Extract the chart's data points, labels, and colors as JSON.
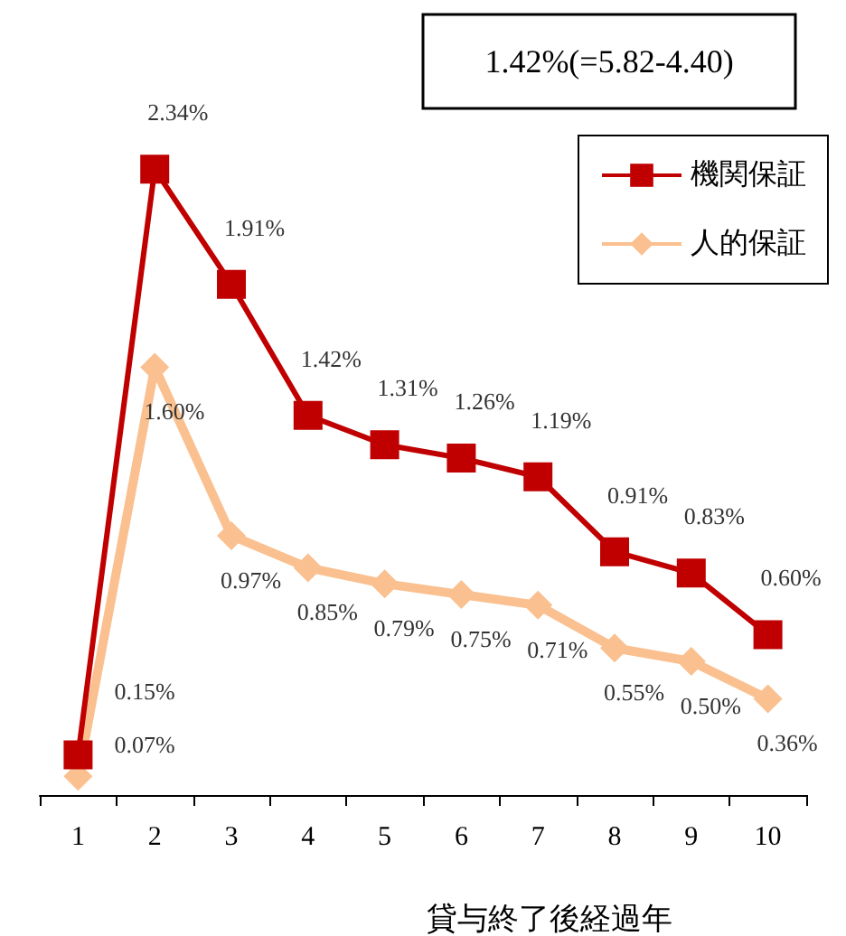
{
  "chart_data": {
    "type": "line",
    "categories": [
      "1",
      "2",
      "3",
      "4",
      "5",
      "6",
      "7",
      "8",
      "9",
      "10"
    ],
    "xlabel": "貸与終了後経過年",
    "legend": "top right",
    "series": [
      {
        "name": "機関保証",
        "color": "#c00000",
        "marker": "square",
        "values": [
          0.15,
          2.34,
          1.91,
          1.42,
          1.31,
          1.26,
          1.19,
          0.91,
          0.83,
          0.6
        ],
        "value_labels": [
          "0.15%",
          "2.34%",
          "1.91%",
          "1.42%",
          "1.31%",
          "1.26%",
          "1.19%",
          "0.91%",
          "0.83%",
          "0.60%"
        ]
      },
      {
        "name": "人的保証",
        "color": "#fac090",
        "marker": "diamond",
        "values": [
          0.07,
          1.6,
          0.97,
          0.85,
          0.79,
          0.75,
          0.71,
          0.55,
          0.5,
          0.36
        ],
        "value_labels": [
          "0.07%",
          "1.60%",
          "0.97%",
          "0.85%",
          "0.79%",
          "0.75%",
          "0.71%",
          "0.55%",
          "0.50%",
          "0.36%"
        ]
      }
    ],
    "annotations": [
      "1.42%(=5.82-4.40)"
    ]
  }
}
